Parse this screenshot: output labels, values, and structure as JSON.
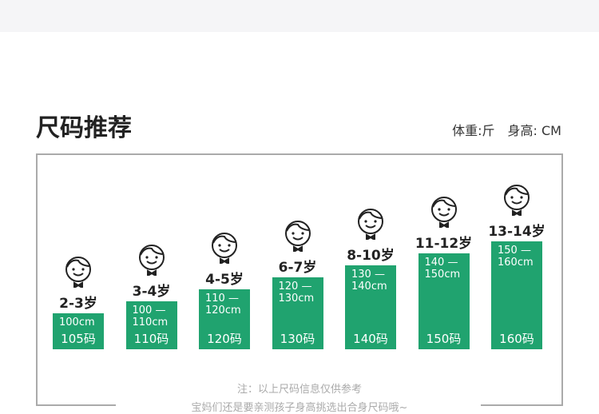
{
  "header": {
    "title": "尺码推荐",
    "units": "体重:斤　身高: CM"
  },
  "groups": [
    {
      "age": "2-3岁",
      "height": "100cm",
      "size": "105码"
    },
    {
      "age": "3-4岁",
      "height": "100 — 110cm",
      "size": "110码"
    },
    {
      "age": "4-5岁",
      "height": "110 — 120cm",
      "size": "120码"
    },
    {
      "age": "6-7岁",
      "height": "120 — 130cm",
      "size": "130码"
    },
    {
      "age": "8-10岁",
      "height": "130 — 140cm",
      "size": "140码"
    },
    {
      "age": "11-12岁",
      "height": "140 — 150cm",
      "size": "150码"
    },
    {
      "age": "13-14岁",
      "height": "150 — 160cm",
      "size": "160码"
    }
  ],
  "notes": [
    "注：以上尺码信息仅供参考",
    "宝妈们还是要亲测孩子身高挑选出合身尺码哦~"
  ]
}
